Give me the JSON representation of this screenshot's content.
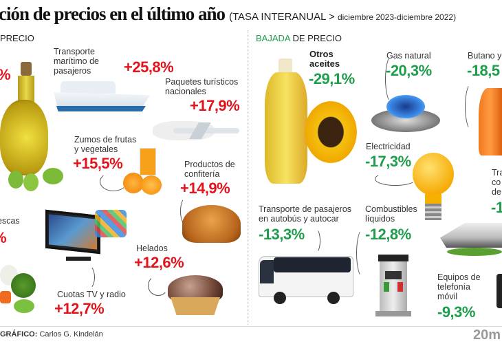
{
  "header": {
    "title": "ción de precios en el último año",
    "subtitle_main": "(TASA INTERANUAL >",
    "subtitle_small": "diciembre 2023-diciembre 2022)",
    "subtitle_close": ""
  },
  "left_section": {
    "label": "PRECIO",
    "cut_pct_1": "%",
    "cut_label": "/\nescas",
    "cut_pct_2": "%",
    "items": [
      {
        "label": "Transporte marítimo de pasajeros",
        "value": "+25,8%"
      },
      {
        "label": "Paquetes turísticos nacionales",
        "value": "+17,9%"
      },
      {
        "label": "Zumos de frutas y vegetales",
        "value": "+15,5%"
      },
      {
        "label": "Productos de confitería",
        "value": "+14,9%"
      },
      {
        "label": "Helados",
        "value": "+12,6%"
      },
      {
        "label": "Cuotas TV y radio",
        "value": "+12,7%"
      }
    ]
  },
  "right_section": {
    "label_accent": "BAJADA",
    "label_rest": " DE PRECIO",
    "items": [
      {
        "label": "Otros aceites",
        "value": "-29,1%"
      },
      {
        "label": "Gas natural",
        "value": "-20,3%"
      },
      {
        "label": "Butano y",
        "value": "-18,5"
      },
      {
        "label": "Electricidad",
        "value": "-17,3%"
      },
      {
        "label": "Tra co de",
        "value": "-1"
      },
      {
        "label": "Transporte de pasajeros en autobús y autocar",
        "value": "-13,3%"
      },
      {
        "label": "Combustibles líquidos",
        "value": "-12,8%"
      },
      {
        "label": "Equipos de telefonía móvil",
        "value": "-9,3%"
      }
    ]
  },
  "footer": {
    "credit_label": "GRÁFICO:",
    "credit_name": " Carlos G. Kindelán",
    "logo": "20m"
  },
  "colors": {
    "increase": "#e3121b",
    "decrease": "#1f9d4c"
  }
}
